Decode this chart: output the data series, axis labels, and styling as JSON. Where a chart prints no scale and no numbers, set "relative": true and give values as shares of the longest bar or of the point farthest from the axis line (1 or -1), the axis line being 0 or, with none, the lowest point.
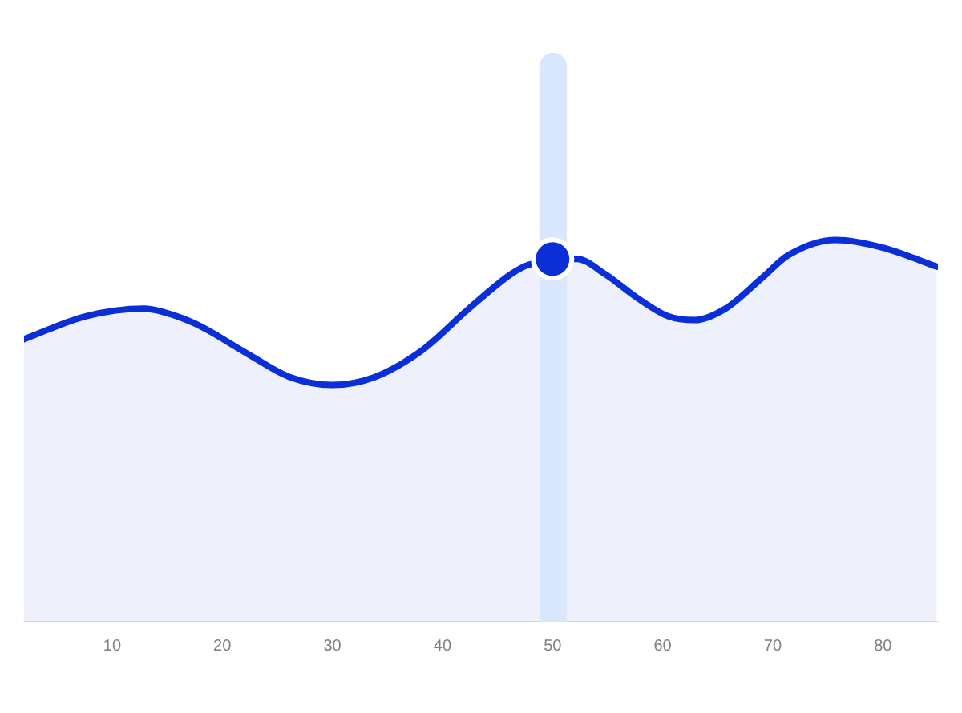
{
  "chart_data": {
    "type": "area",
    "relative": true,
    "x": [
      2,
      7.6,
      12.9,
      14.8,
      17.6,
      22.4,
      26.2,
      30,
      33.8,
      38.1,
      42.4,
      46.2,
      47.8,
      52.2,
      54.8,
      57.6,
      60.5,
      62.9,
      65.7,
      69,
      71.4,
      75.7,
      80,
      84.9
    ],
    "xlim": [
      2,
      85
    ],
    "xticks": [
      10,
      20,
      30,
      40,
      50,
      60,
      70,
      80
    ],
    "series": [
      {
        "color": "#0a2fd6",
        "values": [
          0.74,
          0.8,
          0.82,
          0.81,
          0.78,
          0.7,
          0.64,
          0.62,
          0.64,
          0.71,
          0.82,
          0.91,
          0.935,
          0.95,
          0.91,
          0.85,
          0.8,
          0.79,
          0.82,
          0.9,
          0.96,
          1,
          0.98,
          0.93
        ]
      },
      {
        "type": "scatter",
        "x": [
          50
        ],
        "values": [
          0.95
        ],
        "color": "#0a2fd6",
        "marker": "circle"
      }
    ],
    "bands": [
      {
        "axis": "x",
        "from": 48.8,
        "to": 51.3,
        "color": "#d8e7fb"
      }
    ]
  }
}
